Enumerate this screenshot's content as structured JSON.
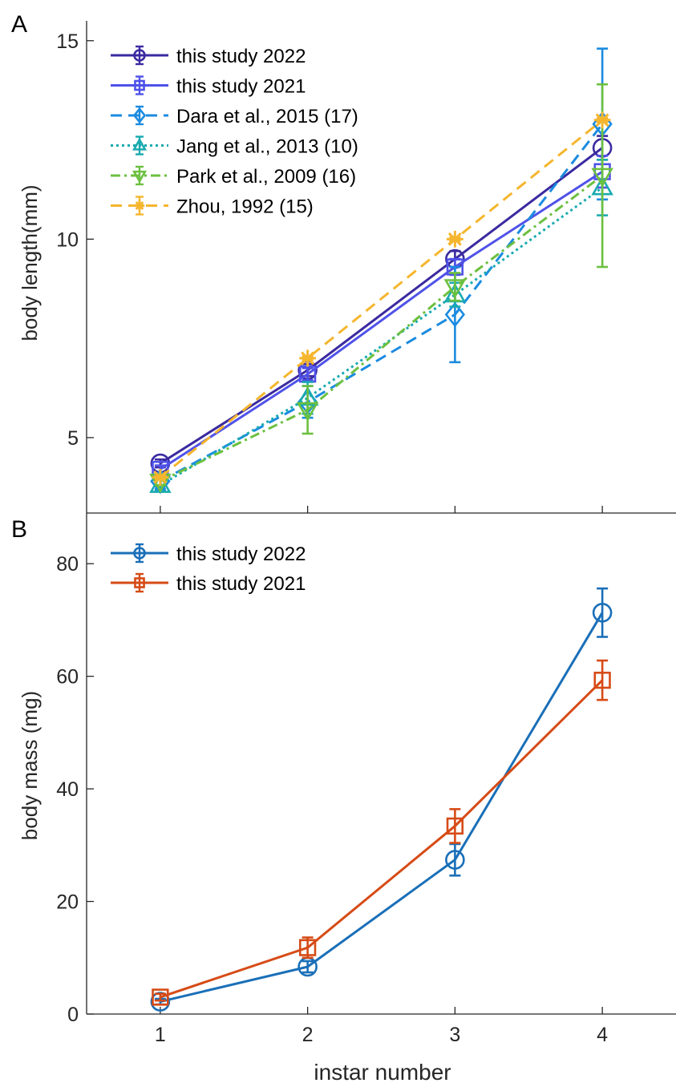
{
  "figure": {
    "shared_xlabel": "instar number",
    "xticks": [
      "1",
      "2",
      "3",
      "4"
    ]
  },
  "chart_data": [
    {
      "panel_label": "A",
      "type": "line",
      "xlabel": "",
      "ylabel": "body length(mm)",
      "xlim": [
        0.5,
        4.5
      ],
      "ylim": [
        3.1,
        15.5
      ],
      "yticks": [
        5,
        10,
        15
      ],
      "grid": false,
      "legend_position": "top-left",
      "series": [
        {
          "name": "this study 2022",
          "color": "#3a2aa0",
          "marker": "circle",
          "dash": "solid",
          "x": [
            1,
            2,
            3,
            4
          ],
          "y": [
            4.35,
            6.7,
            9.5,
            12.3
          ],
          "err": [
            0.1,
            0.15,
            0.2,
            0.3
          ]
        },
        {
          "name": "this study 2021",
          "color": "#4f52e8",
          "marker": "square",
          "dash": "solid",
          "x": [
            1,
            2,
            3,
            4
          ],
          "y": [
            4.2,
            6.6,
            9.3,
            11.7
          ],
          "err": [
            0.1,
            0.15,
            0.2,
            0.4
          ]
        },
        {
          "name": "Dara et al., 2015 (17)",
          "color": "#1b8be0",
          "marker": "diamond",
          "dash": "long-dash",
          "x": [
            1,
            2,
            3,
            4
          ],
          "y": [
            3.9,
            5.9,
            8.1,
            12.9
          ],
          "err": [
            0.2,
            0.4,
            1.2,
            1.9
          ]
        },
        {
          "name": "Jang et al., 2013 (10)",
          "color": "#1aaab0",
          "marker": "triangle-up",
          "dash": "dotted",
          "x": [
            1,
            2,
            3,
            4
          ],
          "y": [
            3.8,
            6.0,
            8.6,
            11.3
          ],
          "err": [
            0.15,
            0.4,
            0.3,
            0.7
          ]
        },
        {
          "name": "Park et al., 2009 (16)",
          "color": "#6cc040",
          "marker": "triangle-down",
          "dash": "dash-dot",
          "x": [
            1,
            2,
            3,
            4
          ],
          "y": [
            3.9,
            5.7,
            8.8,
            11.6
          ],
          "err": [
            0.1,
            0.6,
            0.35,
            2.3
          ]
        },
        {
          "name": "Zhou, 1992 (15)",
          "color": "#f5b62e",
          "marker": "star",
          "dash": "long-dash",
          "x": [
            1,
            2,
            3,
            4
          ],
          "y": [
            4.0,
            7.0,
            10.0,
            13.0
          ],
          "err": [
            0.05,
            0.05,
            0.05,
            0.05
          ]
        }
      ]
    },
    {
      "panel_label": "B",
      "type": "line",
      "xlabel": "instar number",
      "ylabel": "body mass (mg)",
      "xlim": [
        0.5,
        4.5
      ],
      "ylim": [
        0,
        89
      ],
      "yticks": [
        0,
        20,
        40,
        60,
        80
      ],
      "grid": false,
      "legend_position": "top-left",
      "series": [
        {
          "name": "this study 2022",
          "color": "#1a6fb8",
          "marker": "circle",
          "dash": "solid",
          "x": [
            1,
            2,
            3,
            4
          ],
          "y": [
            2.2,
            8.4,
            27.4,
            71.3
          ],
          "err": [
            0.5,
            1.0,
            2.8,
            4.3
          ]
        },
        {
          "name": "this study 2021",
          "color": "#d64b16",
          "marker": "square",
          "dash": "solid",
          "x": [
            1,
            2,
            3,
            4
          ],
          "y": [
            3.0,
            11.8,
            33.4,
            59.3
          ],
          "err": [
            0.6,
            1.8,
            3.0,
            3.5
          ]
        }
      ]
    }
  ]
}
